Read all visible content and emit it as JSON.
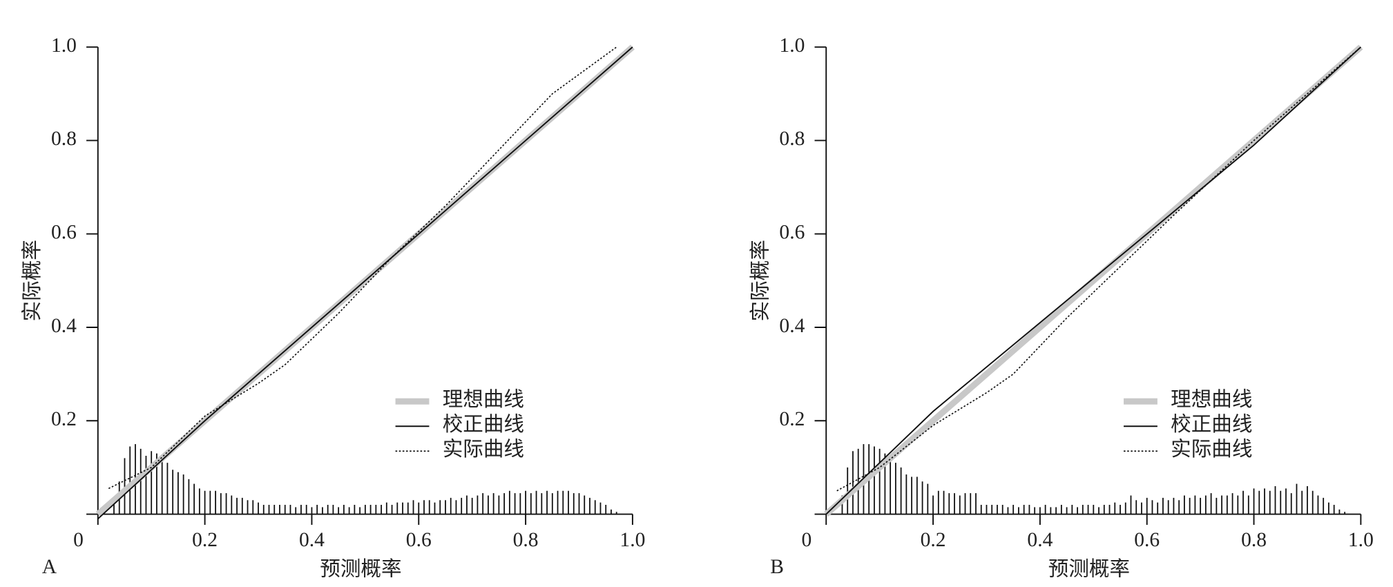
{
  "chart_data": [
    {
      "type": "line",
      "panel_label": "A",
      "xlabel": "预测概率",
      "ylabel": "实际概率",
      "xlim": [
        0,
        1
      ],
      "ylim": [
        0,
        1
      ],
      "xticks": [
        0,
        0.2,
        0.4,
        0.6,
        0.8,
        {
          "value": 1,
          "label": "1.0"
        }
      ],
      "yticks": [
        0.2,
        0.4,
        0.6,
        0.8,
        {
          "value": 1,
          "label": "1.0"
        }
      ],
      "legend": "lower right",
      "series": [
        {
          "name": "理想曲线",
          "color": "#c8c8c8",
          "style": "thick",
          "x": [
            0,
            1
          ],
          "values": [
            0,
            1
          ]
        },
        {
          "name": "校正曲线",
          "color": "#111111",
          "style": "solid",
          "x": [
            0,
            0.2,
            0.4,
            0.6,
            0.8,
            1
          ],
          "values": [
            -0.01,
            0.2,
            0.4,
            0.6,
            0.8,
            1
          ]
        },
        {
          "name": "实际曲线",
          "color": "#111111",
          "style": "dotted",
          "x": [
            0.02,
            0.1,
            0.2,
            0.3,
            0.35,
            0.45,
            0.55,
            0.65,
            0.75,
            0.85,
            0.97
          ],
          "values": [
            0.055,
            0.1,
            0.21,
            0.28,
            0.32,
            0.43,
            0.55,
            0.66,
            0.78,
            0.9,
            1
          ]
        }
      ],
      "histogram": {
        "color": "#111111",
        "x": [
          0.03,
          0.04,
          0.05,
          0.06,
          0.07,
          0.08,
          0.09,
          0.1,
          0.11,
          0.12,
          0.13,
          0.14,
          0.15,
          0.16,
          0.17,
          0.18,
          0.19,
          0.2,
          0.21,
          0.22,
          0.23,
          0.24,
          0.25,
          0.26,
          0.27,
          0.28,
          0.29,
          0.3,
          0.31,
          0.32,
          0.33,
          0.34,
          0.35,
          0.36,
          0.37,
          0.38,
          0.39,
          0.4,
          0.41,
          0.42,
          0.43,
          0.44,
          0.45,
          0.46,
          0.47,
          0.48,
          0.49,
          0.5,
          0.51,
          0.52,
          0.53,
          0.54,
          0.55,
          0.56,
          0.57,
          0.58,
          0.59,
          0.6,
          0.61,
          0.62,
          0.63,
          0.64,
          0.65,
          0.66,
          0.67,
          0.68,
          0.69,
          0.7,
          0.71,
          0.72,
          0.73,
          0.74,
          0.75,
          0.76,
          0.77,
          0.78,
          0.79,
          0.8,
          0.81,
          0.82,
          0.83,
          0.84,
          0.85,
          0.86,
          0.87,
          0.88,
          0.89,
          0.9,
          0.91,
          0.92,
          0.93,
          0.94,
          0.95,
          0.96,
          0.97
        ],
        "values": [
          0.03,
          0.07,
          0.12,
          0.145,
          0.15,
          0.14,
          0.125,
          0.135,
          0.13,
          0.12,
          0.11,
          0.095,
          0.09,
          0.085,
          0.075,
          0.065,
          0.055,
          0.05,
          0.05,
          0.05,
          0.045,
          0.045,
          0.04,
          0.035,
          0.035,
          0.03,
          0.03,
          0.025,
          0.02,
          0.02,
          0.02,
          0.02,
          0.02,
          0.02,
          0.015,
          0.02,
          0.02,
          0.015,
          0.02,
          0.015,
          0.02,
          0.02,
          0.015,
          0.02,
          0.015,
          0.02,
          0.015,
          0.02,
          0.02,
          0.02,
          0.02,
          0.025,
          0.02,
          0.025,
          0.025,
          0.025,
          0.03,
          0.025,
          0.03,
          0.03,
          0.025,
          0.03,
          0.03,
          0.035,
          0.03,
          0.035,
          0.04,
          0.035,
          0.04,
          0.045,
          0.04,
          0.045,
          0.04,
          0.045,
          0.05,
          0.045,
          0.045,
          0.05,
          0.045,
          0.05,
          0.045,
          0.05,
          0.045,
          0.05,
          0.05,
          0.05,
          0.045,
          0.045,
          0.04,
          0.035,
          0.03,
          0.025,
          0.02,
          0.01,
          0.005
        ]
      }
    },
    {
      "type": "line",
      "panel_label": "B",
      "xlabel": "预测概率",
      "ylabel": "实际概率",
      "xlim": [
        0,
        1
      ],
      "ylim": [
        0,
        1
      ],
      "xticks": [
        0,
        0.2,
        0.4,
        0.6,
        0.8,
        {
          "value": 1,
          "label": "1.0"
        }
      ],
      "yticks": [
        0.2,
        0.4,
        0.6,
        0.8,
        {
          "value": 1,
          "label": "1.0"
        }
      ],
      "legend": "lower right",
      "series": [
        {
          "name": "理想曲线",
          "color": "#c8c8c8",
          "style": "thick",
          "x": [
            0,
            1
          ],
          "values": [
            0,
            1
          ]
        },
        {
          "name": "校正曲线",
          "color": "#111111",
          "style": "solid",
          "x": [
            0,
            0.2,
            0.4,
            0.6,
            0.8,
            1
          ],
          "values": [
            0,
            0.22,
            0.41,
            0.6,
            0.79,
            1
          ]
        },
        {
          "name": "实际曲线",
          "color": "#111111",
          "style": "dotted",
          "x": [
            0.02,
            0.1,
            0.2,
            0.3,
            0.35,
            0.45,
            0.55,
            0.65,
            0.8,
            1
          ],
          "values": [
            0.05,
            0.1,
            0.19,
            0.26,
            0.3,
            0.42,
            0.53,
            0.64,
            0.8,
            1
          ]
        }
      ],
      "histogram": {
        "color": "#111111",
        "x": [
          0.03,
          0.04,
          0.05,
          0.06,
          0.07,
          0.08,
          0.09,
          0.1,
          0.11,
          0.12,
          0.13,
          0.14,
          0.15,
          0.16,
          0.17,
          0.18,
          0.19,
          0.2,
          0.21,
          0.22,
          0.23,
          0.24,
          0.25,
          0.26,
          0.27,
          0.28,
          0.29,
          0.3,
          0.31,
          0.32,
          0.33,
          0.34,
          0.35,
          0.36,
          0.37,
          0.38,
          0.39,
          0.4,
          0.41,
          0.42,
          0.43,
          0.44,
          0.45,
          0.46,
          0.47,
          0.48,
          0.49,
          0.5,
          0.51,
          0.52,
          0.53,
          0.54,
          0.55,
          0.56,
          0.57,
          0.58,
          0.59,
          0.6,
          0.61,
          0.62,
          0.63,
          0.64,
          0.65,
          0.66,
          0.67,
          0.68,
          0.69,
          0.7,
          0.71,
          0.72,
          0.73,
          0.74,
          0.75,
          0.76,
          0.77,
          0.78,
          0.79,
          0.8,
          0.81,
          0.82,
          0.83,
          0.84,
          0.85,
          0.86,
          0.87,
          0.88,
          0.89,
          0.9,
          0.91,
          0.92,
          0.93,
          0.94,
          0.95,
          0.96,
          0.97
        ],
        "values": [
          0.04,
          0.1,
          0.135,
          0.14,
          0.15,
          0.15,
          0.145,
          0.14,
          0.13,
          0.12,
          0.11,
          0.1,
          0.085,
          0.08,
          0.08,
          0.07,
          0.065,
          0.04,
          0.05,
          0.05,
          0.045,
          0.045,
          0.04,
          0.045,
          0.045,
          0.045,
          0.02,
          0.02,
          0.02,
          0.02,
          0.02,
          0.015,
          0.02,
          0.015,
          0.02,
          0.02,
          0.015,
          0.015,
          0.02,
          0.015,
          0.015,
          0.02,
          0.015,
          0.02,
          0.015,
          0.02,
          0.02,
          0.02,
          0.015,
          0.02,
          0.02,
          0.025,
          0.02,
          0.025,
          0.04,
          0.03,
          0.025,
          0.035,
          0.03,
          0.025,
          0.035,
          0.03,
          0.035,
          0.03,
          0.04,
          0.035,
          0.04,
          0.035,
          0.04,
          0.045,
          0.035,
          0.04,
          0.04,
          0.045,
          0.04,
          0.05,
          0.04,
          0.055,
          0.05,
          0.055,
          0.05,
          0.06,
          0.05,
          0.055,
          0.045,
          0.065,
          0.05,
          0.06,
          0.05,
          0.04,
          0.035,
          0.025,
          0.02,
          0.01,
          0.005
        ]
      }
    }
  ]
}
